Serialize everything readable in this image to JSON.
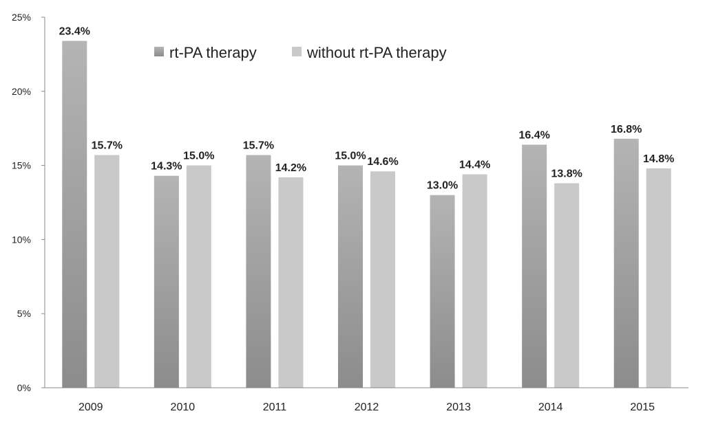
{
  "chart_data": {
    "type": "bar",
    "title": "",
    "xlabel": "",
    "ylabel": "",
    "categories": [
      "2009",
      "2010",
      "2011",
      "2012",
      "2013",
      "2014",
      "2015"
    ],
    "series": [
      {
        "name": "rt-PA therapy",
        "values": [
          23.4,
          14.3,
          15.7,
          15.0,
          13.0,
          16.4,
          16.8
        ],
        "labels": [
          "23.4%",
          "14.3%",
          "15.7%",
          "15.0%",
          "13.0%",
          "16.4%",
          "16.8%"
        ],
        "color_dark": "#8c8c8c",
        "color_light": "#b4b4b4"
      },
      {
        "name": "without rt-PA therapy",
        "values": [
          15.7,
          15.0,
          14.2,
          14.6,
          14.4,
          13.8,
          14.8
        ],
        "labels": [
          "15.7%",
          "15.0%",
          "14.2%",
          "14.6%",
          "14.4%",
          "13.8%",
          "14.8%"
        ],
        "color_dark": "#c9c9c9",
        "color_light": "#c9c9c9"
      }
    ],
    "ylim": [
      0,
      25
    ],
    "yticks": [
      0,
      5,
      10,
      15,
      20,
      25
    ],
    "ytick_labels": [
      "0%",
      "5%",
      "10%",
      "15%",
      "20%",
      "25%"
    ],
    "grid": false,
    "legend_position": "top-center"
  }
}
